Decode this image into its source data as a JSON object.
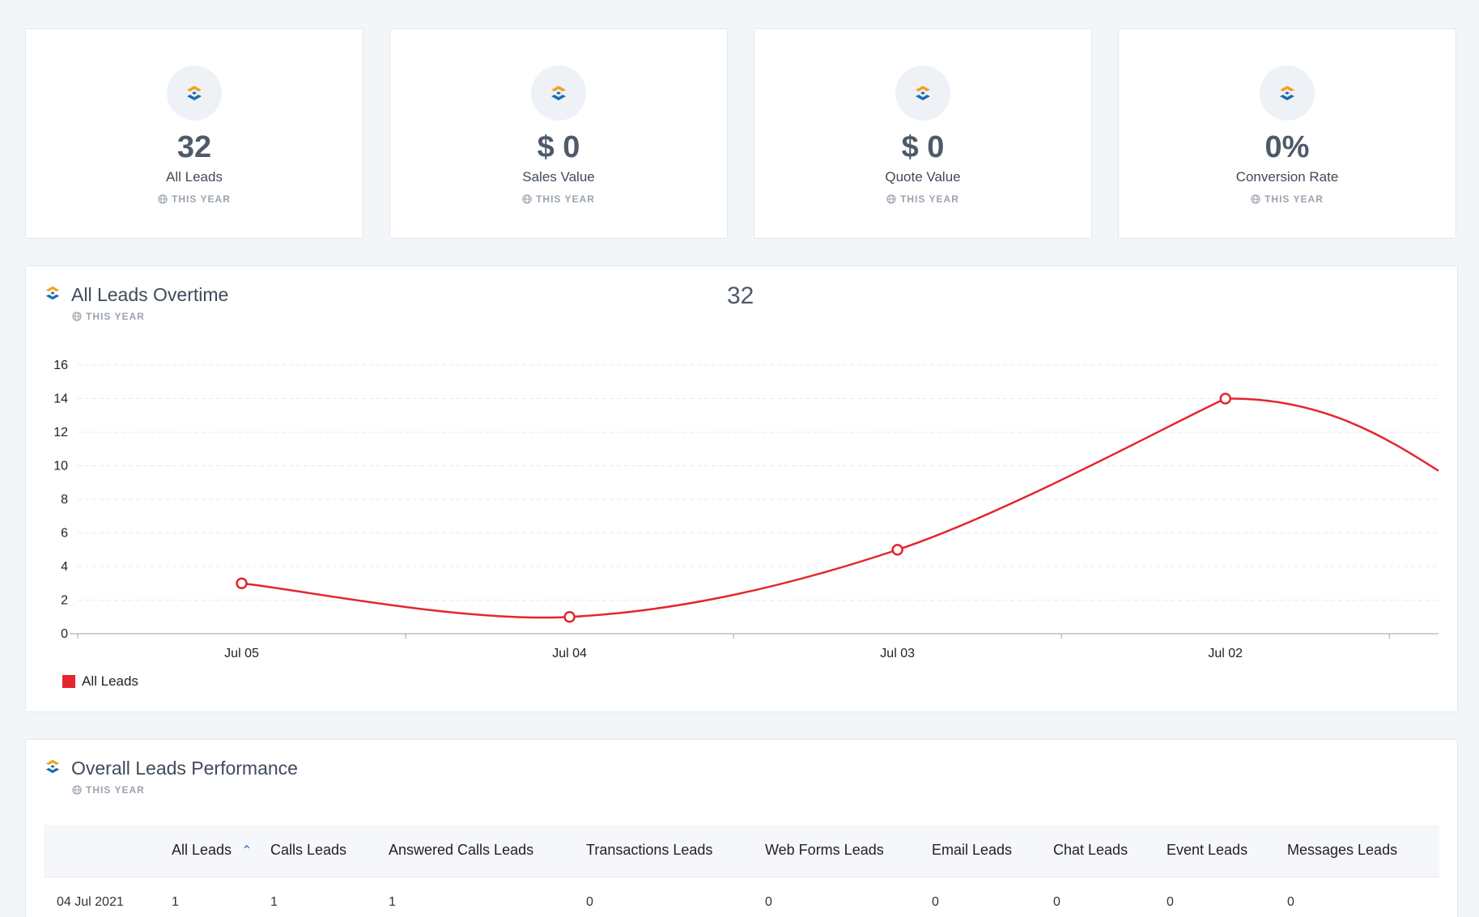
{
  "colors": {
    "accent_orange": "#f4a020",
    "accent_blue": "#1f6cb0",
    "line_red": "#e3262f",
    "text": "#3f4a5a",
    "muted": "#9aa3ae"
  },
  "stats": [
    {
      "value": "32",
      "label": "All Leads",
      "period": "THIS YEAR",
      "icon": "leads-logo-icon"
    },
    {
      "value": "$ 0",
      "label": "Sales Value",
      "period": "THIS YEAR",
      "icon": "leads-logo-icon"
    },
    {
      "value": "$ 0",
      "label": "Quote Value",
      "period": "THIS YEAR",
      "icon": "leads-logo-icon"
    },
    {
      "value": "0%",
      "label": "Conversion Rate",
      "period": "THIS YEAR",
      "icon": "leads-logo-icon"
    }
  ],
  "overtime": {
    "title": "All Leads Overtime",
    "period": "THIS YEAR",
    "total": "32",
    "legend": "All Leads"
  },
  "chart_data": {
    "type": "line",
    "title": "",
    "xlabel": "",
    "ylabel": "",
    "categories": [
      "Jul 05",
      "Jul 04",
      "Jul 03",
      "Jul 02"
    ],
    "series": [
      {
        "name": "All Leads",
        "color": "#e3262f",
        "values": [
          3,
          1,
          5,
          14
        ]
      }
    ],
    "ylim": [
      0,
      16
    ],
    "yticks": [
      "0",
      "2",
      "4",
      "6",
      "8",
      "10",
      "12",
      "14",
      "16"
    ],
    "grid": true,
    "legend_position": "bottom-left"
  },
  "performance": {
    "title": "Overall Leads Performance",
    "period": "THIS YEAR",
    "columns": [
      "",
      "All Leads",
      "Calls Leads",
      "Answered Calls Leads",
      "Transactions Leads",
      "Web Forms Leads",
      "Email Leads",
      "Chat Leads",
      "Event Leads",
      "Messages Leads"
    ],
    "rows": [
      [
        "04 Jul 2021",
        "1",
        "1",
        "1",
        "0",
        "0",
        "0",
        "0",
        "0",
        "0"
      ]
    ]
  }
}
